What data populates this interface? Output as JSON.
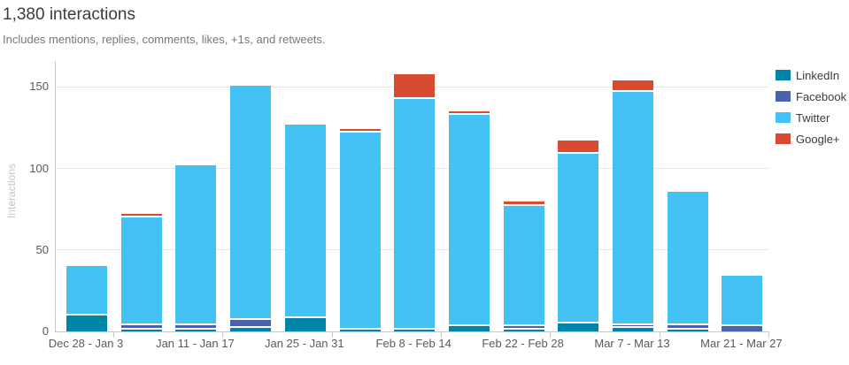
{
  "header": {
    "title": "1,380 interactions",
    "subtitle": "Includes mentions, replies, comments, likes, +1s, and retweets."
  },
  "chart_data": {
    "type": "bar",
    "stacked": true,
    "title": "1,380 interactions",
    "xlabel": "",
    "ylabel": "Interactions",
    "y_ticks": [
      0,
      50,
      100,
      150
    ],
    "ylim": [
      0,
      166
    ],
    "grid": true,
    "legend_position": "right",
    "categories": [
      "Dec 28 - Jan 3",
      "",
      "Jan 11 - Jan 17",
      "",
      "Jan 25 - Jan 31",
      "",
      "Feb 8 - Feb 14",
      "",
      "Feb 22 - Feb 28",
      "",
      "Mar 7 - Mar 13",
      "",
      "Mar 21 - Mar 27"
    ],
    "series": [
      {
        "name": "LinkedIn",
        "color": "#0084A8",
        "values": [
          10,
          1,
          1,
          2,
          8,
          1,
          1,
          3,
          1,
          5,
          2,
          1,
          0
        ]
      },
      {
        "name": "Facebook",
        "color": "#4A62AB",
        "values": [
          0,
          2,
          2,
          4,
          0,
          0,
          0,
          0,
          1,
          0,
          1,
          2,
          3
        ]
      },
      {
        "name": "Twitter",
        "color": "#45C2F5",
        "values": [
          30,
          68,
          99,
          145,
          119,
          122,
          143,
          131,
          76,
          105,
          145,
          83,
          31
        ]
      },
      {
        "name": "Google+",
        "color": "#D94B30",
        "values": [
          0,
          1,
          0,
          0,
          0,
          1,
          14,
          1,
          2,
          7,
          6,
          0,
          0
        ]
      }
    ],
    "bar_totals": [
      40,
      72,
      102,
      151,
      127,
      124,
      158,
      135,
      80,
      117,
      154,
      86,
      34
    ],
    "grand_total": 1380,
    "colors": {
      "gridline": "#e6e6e6",
      "axis": "#c9c9c9",
      "tick_text": "#5a5a5a",
      "title_text": "#3c3c3c",
      "subtitle_text": "#787878",
      "y_axis_title_text": "#c5c5c5"
    }
  }
}
